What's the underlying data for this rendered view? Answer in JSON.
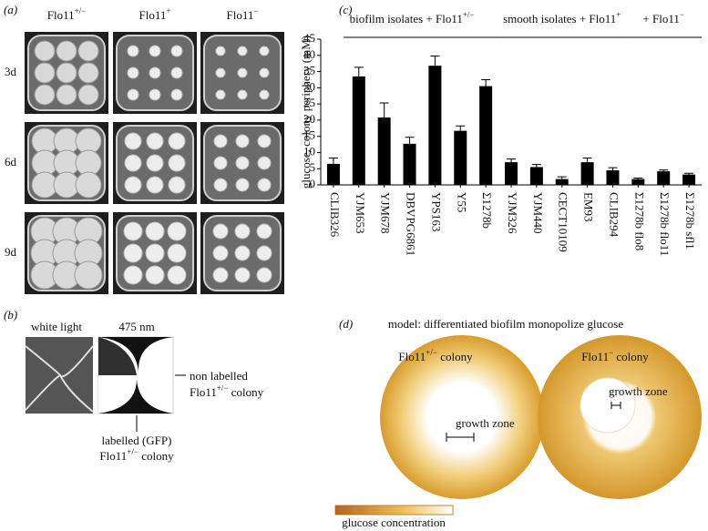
{
  "panels": {
    "a": {
      "label": "(a)",
      "columns": [
        {
          "text": "Flo11",
          "sup": "+/−"
        },
        {
          "text": "Flo11",
          "sup": "+"
        },
        {
          "text": "Flo11",
          "sup": "−"
        }
      ],
      "rows": [
        "3d",
        "6d",
        "9d"
      ]
    },
    "b": {
      "label": "(b)",
      "left_title": "white light",
      "right_title": "475 nm",
      "non_labelled": "non labelled",
      "non_labelled_colony": {
        "text": "Flo11",
        "sup": "+/−",
        "rest": " colony"
      },
      "labelled": "labelled (GFP)",
      "labelled_colony": {
        "text": "Flo11",
        "sup": "+/−",
        "rest": " colony"
      }
    },
    "d": {
      "label": "(d)",
      "title": "model: differentiated biofilm monopolize glucose",
      "left_colony": {
        "text": "Flo11",
        "sup": "+/−",
        "rest": " colony"
      },
      "right_colony": {
        "text": "Flo11",
        "sup": "−",
        "rest": " colony"
      },
      "left_zone": "growth zone",
      "right_zone": "growth zone",
      "legend": "glucose concentration"
    }
  },
  "chart_data": {
    "type": "bar",
    "panel_label": "(c)",
    "ylabel": "glucose, colony periphery (mM)",
    "groups": [
      {
        "text": "biofilm isolates + Flo11",
        "sup": "+/−"
      },
      {
        "text": "smooth isolates + Flo11",
        "sup": "+"
      },
      {
        "text": "+ Flo11",
        "sup": "−"
      }
    ],
    "categories": [
      "CLIB326",
      "YJM653",
      "YJM678",
      "DBVPG6861",
      "YPS163",
      "Y55",
      "Σ1278b",
      "YJM326",
      "YJM440",
      "CECT10109",
      "EM93",
      "CLIB294",
      "Σ1278b flo8",
      "Σ1278b flo11",
      "Σ1278b sfl1"
    ],
    "values": [
      6.5,
      33.5,
      20.8,
      12.7,
      36.8,
      16.7,
      30.5,
      7.0,
      5.5,
      1.8,
      7.0,
      4.5,
      1.8,
      4.2,
      3.2
    ],
    "errors": [
      1.8,
      2.8,
      4.5,
      2.0,
      3.0,
      1.5,
      2.0,
      1.0,
      0.8,
      0.7,
      1.3,
      0.8,
      0.3,
      0.4,
      0.4
    ],
    "color": "#000000",
    "ylim": [
      0,
      45
    ],
    "yticks": [
      0,
      5,
      10,
      15,
      20,
      25,
      30,
      35,
      40,
      45
    ]
  }
}
